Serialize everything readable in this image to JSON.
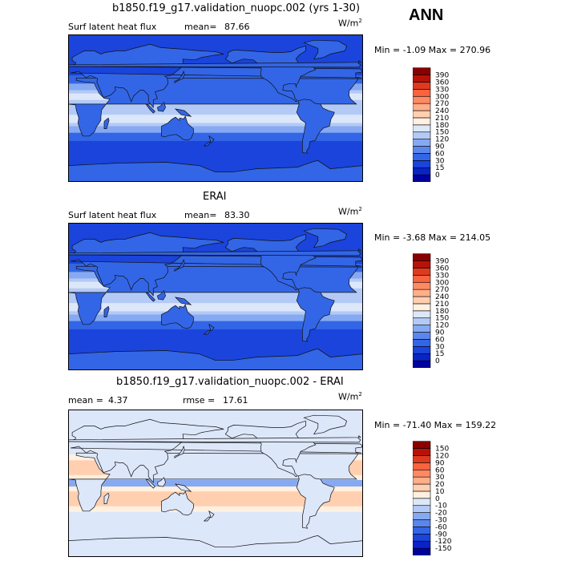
{
  "season": "ANN",
  "units_base": "W/m",
  "units_exp": "2",
  "chart_data": [
    {
      "type": "heatmap",
      "title": "b1850.f19_g17.validation_nuopc.002 (yrs 1-30)",
      "variable": "Surf latent heat flux",
      "stat1_label": "mean=",
      "stat1_value": "87.66",
      "stat2_label": "",
      "stat2_value": "",
      "min_max": "Min =  -1.09 Max = 270.96",
      "colorbar": {
        "levels": [
          "0",
          "15",
          "30",
          "60",
          "90",
          "120",
          "150",
          "180",
          "210",
          "240",
          "270",
          "300",
          "330",
          "360",
          "390"
        ],
        "colors": [
          "#00009e",
          "#0a23c8",
          "#1a44dc",
          "#3366e6",
          "#5a86ee",
          "#86a9f2",
          "#b3caf6",
          "#dde7fa",
          "#fff0e0",
          "#ffcfb0",
          "#ffae88",
          "#ff8a62",
          "#f86340",
          "#e03a1e",
          "#b81208",
          "#8a0000"
        ]
      },
      "map_style": "positive"
    },
    {
      "type": "heatmap",
      "title": "ERAI",
      "variable": "Surf latent heat flux",
      "stat1_label": "mean=",
      "stat1_value": "83.30",
      "stat2_label": "",
      "stat2_value": "",
      "min_max": "Min =  -3.68 Max = 214.05",
      "colorbar": {
        "levels": [
          "0",
          "15",
          "30",
          "60",
          "90",
          "120",
          "150",
          "180",
          "210",
          "240",
          "270",
          "300",
          "330",
          "360",
          "390"
        ],
        "colors": [
          "#00009e",
          "#0a23c8",
          "#1a44dc",
          "#3366e6",
          "#5a86ee",
          "#86a9f2",
          "#b3caf6",
          "#dde7fa",
          "#fff0e0",
          "#ffcfb0",
          "#ffae88",
          "#ff8a62",
          "#f86340",
          "#e03a1e",
          "#b81208",
          "#8a0000"
        ]
      },
      "map_style": "positive"
    },
    {
      "type": "heatmap",
      "title": "b1850.f19_g17.validation_nuopc.002 - ERAI",
      "variable": "",
      "stat1_label": "mean =",
      "stat1_value": "4.37",
      "stat2_label": "rmse =",
      "stat2_value": "17.61",
      "min_max": "Min = -71.40 Max = 159.22",
      "colorbar": {
        "levels": [
          "-150",
          "-120",
          "-90",
          "-60",
          "-30",
          "-20",
          "-10",
          "0",
          "10",
          "20",
          "30",
          "60",
          "90",
          "120",
          "150"
        ],
        "colors": [
          "#00009e",
          "#0a23c8",
          "#1a44dc",
          "#3366e6",
          "#5a86ee",
          "#86a9f2",
          "#b3caf6",
          "#dde7fa",
          "#fff0e0",
          "#ffcfb0",
          "#ffae88",
          "#ff8a62",
          "#f86340",
          "#e03a1e",
          "#b81208",
          "#8a0000"
        ]
      },
      "map_style": "difference"
    }
  ]
}
